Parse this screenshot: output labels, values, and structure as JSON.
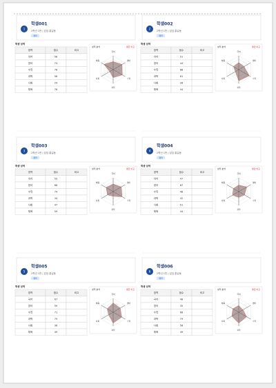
{
  "table_headers": [
    "영역",
    "점수",
    "비고"
  ],
  "table_label": "학생 성적",
  "chart_title": "성적 분석",
  "chart_note": "평균 비교",
  "subjects": [
    "국어",
    "영어",
    "수학",
    "과학",
    "사회",
    "체육"
  ],
  "students": [
    {
      "no": "1",
      "name": "학생001",
      "info": "2학년 1반 | 담임 홍길동",
      "tag": "재학",
      "scores": [
        58,
        74,
        76,
        58,
        29,
        76
      ]
    },
    {
      "no": "2",
      "name": "학생002",
      "info": "2학년 1반 | 담임 홍길동",
      "tag": "재학",
      "scores": [
        51,
        44,
        88,
        81,
        28,
        44
      ]
    },
    {
      "no": "3",
      "name": "학생003",
      "info": "2학년 1반 | 담임 홍길동",
      "tag": "재학",
      "scores": [
        55,
        68,
        74,
        34,
        47,
        59
      ]
    },
    {
      "no": "4",
      "name": "학생004",
      "info": "2학년 1반 | 담임 홍길동",
      "tag": "재학",
      "scores": [
        47,
        67,
        48,
        42,
        51,
        44
      ]
    },
    {
      "no": "5",
      "name": "학생005",
      "info": "2학년 1반 | 담임 홍길동",
      "tag": "재학",
      "scores": [
        67,
        59,
        71,
        79,
        38,
        49
      ]
    },
    {
      "no": "6",
      "name": "학생006",
      "info": "2학년 1반 | 담임 홍길동",
      "tag": "재학",
      "scores": [
        48,
        35,
        66,
        79,
        58,
        49
      ]
    }
  ]
}
